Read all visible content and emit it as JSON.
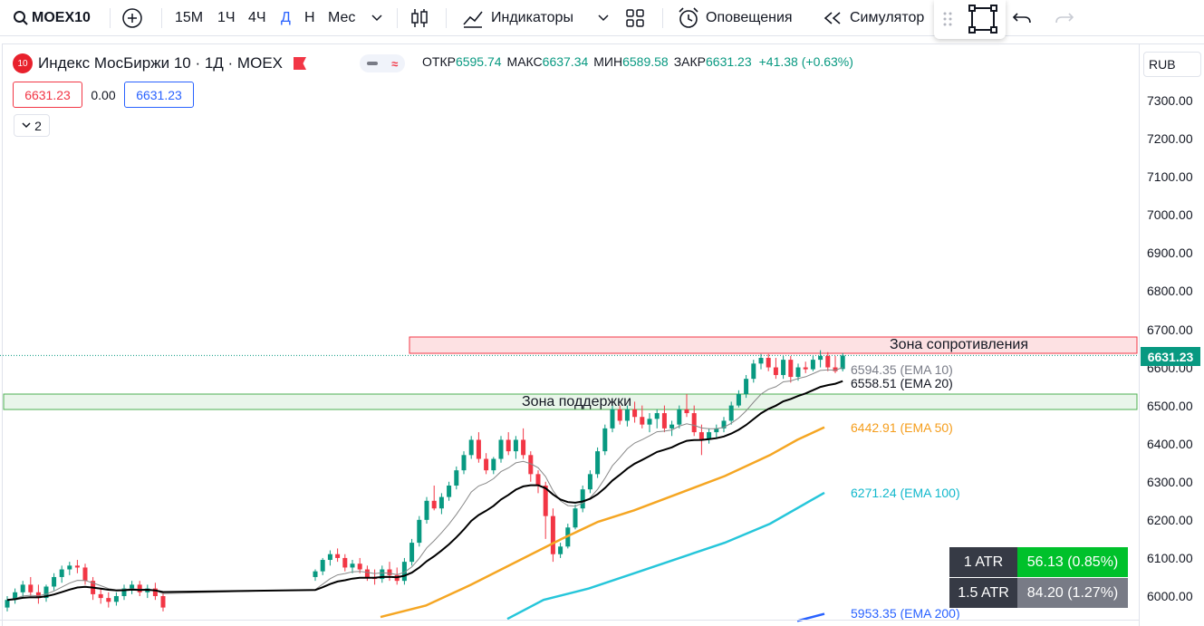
{
  "toolbar": {
    "symbol": "MOEX10",
    "intervals": [
      "15М",
      "1Ч",
      "4Ч",
      "Д",
      "Н",
      "Мес"
    ],
    "active_interval": "Д",
    "indicators_label": "Индикаторы",
    "alerts_label": "Оповещения",
    "simulator_label": "Симулятор"
  },
  "legend": {
    "badge": "10",
    "title": "Индекс МосБиржи 10 · 1Д · MOEX",
    "toggle_symbol": "≈",
    "open_label": "ОТКР",
    "open": "6595.74",
    "high_label": "МАКС",
    "high": "6637.34",
    "low_label": "МИН",
    "low": "6589.58",
    "close_label": "ЗАКР",
    "close": "6631.23",
    "change": "+41.38 (+0.63%)"
  },
  "price_boxes": {
    "sell": "6631.23",
    "spread": "0.00",
    "buy": "6631.23"
  },
  "collapse_count": "2",
  "currency": "RUB",
  "price_axis": {
    "ticks": [
      "7300.00",
      "7200.00",
      "7100.00",
      "7000.00",
      "6900.00",
      "6800.00",
      "6700.00",
      "6600.00",
      "6500.00",
      "6400.00",
      "6300.00",
      "6200.00",
      "6100.00",
      "6000.00"
    ],
    "last_price": "6631.23"
  },
  "zones": {
    "resistance": "Зона сопротивления",
    "support": "Зона поддержки"
  },
  "ema_labels": {
    "ema10": "6594.35 (EMA 10)",
    "ema20": "6558.51 (EMA 20)",
    "ema50": "6442.91 (EMA 50)",
    "ema100": "6271.24 (EMA 100)",
    "ema200": "5953.35 (EMA 200)"
  },
  "atr": [
    {
      "name": "1 ATR",
      "value": "56.13 (0.85%)",
      "color": "#00c12b"
    },
    {
      "name": "1.5 ATR",
      "value": "84.20 (1.27%)",
      "color": "#787b86"
    }
  ],
  "colors": {
    "up": "#089981",
    "down": "#f23645",
    "ema10": "#888888",
    "ema20": "#000000",
    "ema50": "#f5a623",
    "ema100": "#26c6da",
    "ema200": "#2962ff"
  },
  "chart_data": {
    "type": "candlestick",
    "y_range": [
      5970,
      7350
    ],
    "resistance_zone": [
      6645,
      6690
    ],
    "support_zone": [
      6490,
      6530
    ],
    "ohlc": [
      [
        5970,
        6000,
        5960,
        5990
      ],
      [
        5990,
        6020,
        5980,
        6010
      ],
      [
        6010,
        6040,
        5995,
        6030
      ],
      [
        6030,
        6050,
        6000,
        6010
      ],
      [
        6010,
        6030,
        5980,
        5995
      ],
      [
        5995,
        6030,
        5985,
        6025
      ],
      [
        6025,
        6060,
        6015,
        6050
      ],
      [
        6050,
        6080,
        6035,
        6070
      ],
      [
        6070,
        6090,
        6055,
        6080
      ],
      [
        6080,
        6095,
        6060,
        6075
      ],
      [
        6075,
        6085,
        6030,
        6040
      ],
      [
        6040,
        6050,
        5990,
        6005
      ],
      [
        6005,
        6020,
        5980,
        5995
      ],
      [
        5995,
        6010,
        5970,
        5985
      ],
      [
        5985,
        6010,
        5975,
        6000
      ],
      [
        6000,
        6030,
        5990,
        6020
      ],
      [
        6020,
        6040,
        6005,
        6030
      ],
      [
        6030,
        6040,
        6000,
        6010
      ],
      [
        6010,
        6030,
        5995,
        6020
      ],
      [
        6020,
        6035,
        5990,
        6000
      ],
      [
        6000,
        6010,
        5960,
        5970
      ]
    ],
    "ohlc2": [
      [
        6050,
        6070,
        6040,
        6065
      ],
      [
        6065,
        6100,
        6055,
        6095
      ],
      [
        6095,
        6120,
        6080,
        6110
      ],
      [
        6110,
        6125,
        6090,
        6100
      ],
      [
        6100,
        6110,
        6065,
        6075
      ],
      [
        6075,
        6095,
        6060,
        6085
      ],
      [
        6085,
        6100,
        6060,
        6070
      ],
      [
        6070,
        6080,
        6040,
        6050
      ],
      [
        6050,
        6070,
        6030,
        6045
      ],
      [
        6045,
        6080,
        6035,
        6070
      ],
      [
        6070,
        6090,
        6040,
        6055
      ],
      [
        6055,
        6075,
        6030,
        6040
      ],
      [
        6040,
        6100,
        6030,
        6090
      ],
      [
        6090,
        6150,
        6080,
        6140
      ],
      [
        6140,
        6210,
        6130,
        6200
      ],
      [
        6200,
        6260,
        6190,
        6250
      ],
      [
        6250,
        6290,
        6225,
        6230
      ],
      [
        6230,
        6270,
        6215,
        6260
      ],
      [
        6260,
        6300,
        6250,
        6290
      ],
      [
        6290,
        6340,
        6280,
        6330
      ],
      [
        6330,
        6380,
        6320,
        6370
      ],
      [
        6370,
        6420,
        6360,
        6410
      ],
      [
        6410,
        6430,
        6350,
        6360
      ],
      [
        6360,
        6375,
        6320,
        6330
      ],
      [
        6330,
        6365,
        6320,
        6360
      ],
      [
        6360,
        6420,
        6350,
        6410
      ],
      [
        6410,
        6430,
        6370,
        6380
      ],
      [
        6380,
        6420,
        6360,
        6410
      ],
      [
        6410,
        6440,
        6360,
        6370
      ],
      [
        6370,
        6380,
        6300,
        6320
      ],
      [
        6320,
        6330,
        6270,
        6290
      ],
      [
        6290,
        6300,
        6150,
        6210
      ],
      [
        6210,
        6230,
        6090,
        6110
      ],
      [
        6110,
        6140,
        6100,
        6130
      ],
      [
        6130,
        6190,
        6125,
        6180
      ],
      [
        6180,
        6240,
        6175,
        6230
      ],
      [
        6230,
        6290,
        6220,
        6280
      ],
      [
        6280,
        6330,
        6270,
        6320
      ],
      [
        6320,
        6390,
        6310,
        6380
      ],
      [
        6380,
        6450,
        6370,
        6440
      ],
      [
        6440,
        6500,
        6430,
        6490
      ],
      [
        6490,
        6500,
        6450,
        6460
      ],
      [
        6460,
        6500,
        6445,
        6490
      ],
      [
        6490,
        6510,
        6455,
        6470
      ],
      [
        6470,
        6500,
        6440,
        6450
      ],
      [
        6450,
        6480,
        6430,
        6465
      ],
      [
        6465,
        6490,
        6440,
        6480
      ],
      [
        6480,
        6500,
        6430,
        6440
      ],
      [
        6440,
        6460,
        6420,
        6450
      ],
      [
        6450,
        6500,
        6440,
        6490
      ],
      [
        6490,
        6530,
        6470,
        6480
      ],
      [
        6480,
        6500,
        6420,
        6430
      ],
      [
        6430,
        6450,
        6370,
        6410
      ],
      [
        6410,
        6440,
        6400,
        6430
      ],
      [
        6430,
        6450,
        6415,
        6440
      ],
      [
        6440,
        6470,
        6430,
        6460
      ],
      [
        6460,
        6510,
        6450,
        6500
      ],
      [
        6500,
        6540,
        6495,
        6530
      ],
      [
        6530,
        6580,
        6520,
        6570
      ],
      [
        6570,
        6620,
        6560,
        6610
      ],
      [
        6610,
        6635,
        6595,
        6625
      ],
      [
        6625,
        6635,
        6590,
        6600
      ],
      [
        6600,
        6625,
        6570,
        6580
      ],
      [
        6580,
        6630,
        6570,
        6620
      ],
      [
        6620,
        6630,
        6560,
        6575
      ],
      [
        6575,
        6610,
        6565,
        6600
      ],
      [
        6600,
        6615,
        6585,
        6595
      ],
      [
        6595,
        6630,
        6590,
        6620
      ],
      [
        6620,
        6645,
        6600,
        6630
      ],
      [
        6630,
        6640,
        6590,
        6600
      ],
      [
        6600,
        6630,
        6585,
        6590
      ],
      [
        6595.74,
        6637.34,
        6589.58,
        6631.23
      ]
    ]
  }
}
